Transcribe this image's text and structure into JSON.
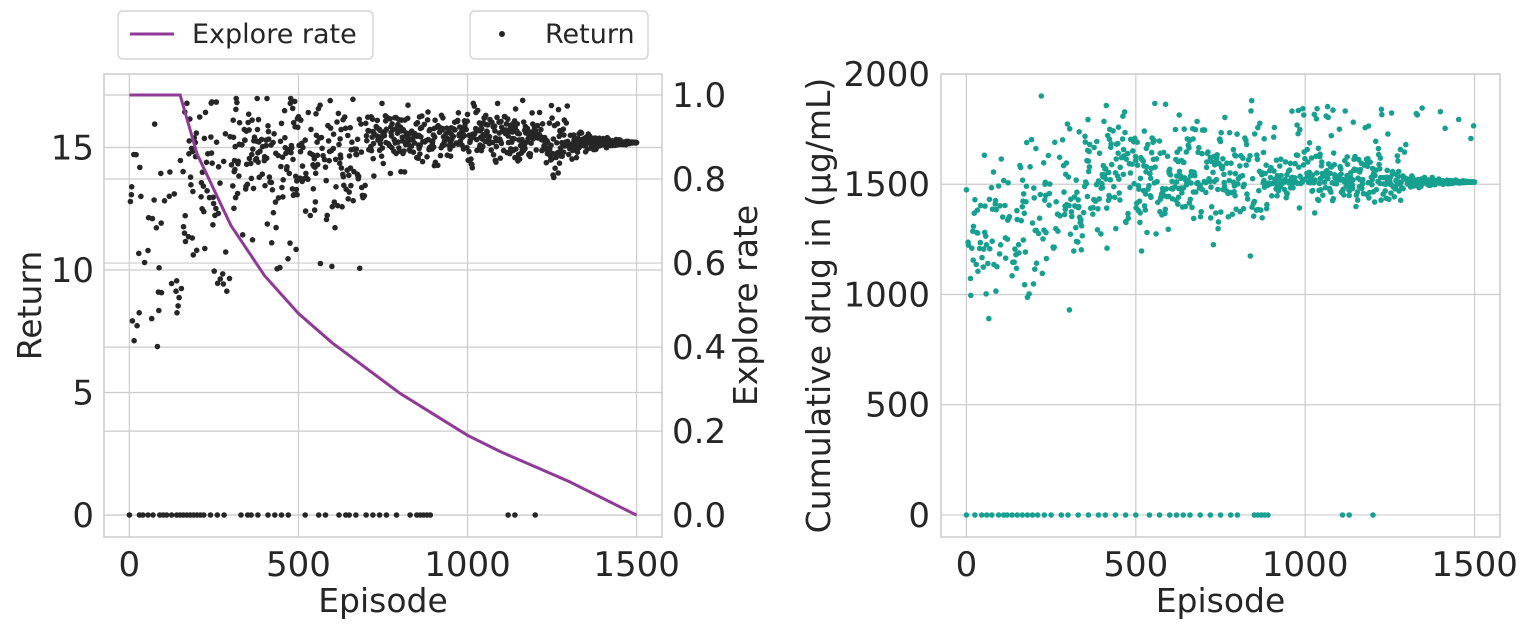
{
  "chart_data": [
    {
      "type": "scatter",
      "xlabel": "Episode",
      "ylabel": "Return",
      "y2label": "Explore rate",
      "xlim": [
        -75,
        1575
      ],
      "ylim": [
        -0.9,
        18
      ],
      "y2lim": [
        -0.052,
        1.05
      ],
      "xticks": [
        0,
        500,
        1000,
        1500
      ],
      "yticks": [
        0,
        5,
        10,
        15
      ],
      "y2ticks": [
        0.0,
        0.2,
        0.4,
        0.6,
        0.8,
        1.0
      ],
      "grid": true,
      "legend": [
        {
          "label": "Explore rate",
          "marker": "line",
          "placement": "above-left"
        },
        {
          "label": "Return",
          "marker": "dot",
          "placement": "above-right"
        }
      ],
      "series": [
        {
          "name": "Explore rate",
          "kind": "line",
          "axis": "right",
          "color": "#8e3a96",
          "x": [
            0,
            150,
            200,
            300,
            400,
            500,
            600,
            700,
            800,
            900,
            1000,
            1100,
            1200,
            1300,
            1400,
            1500
          ],
          "y": [
            1.0,
            1.0,
            0.86,
            0.69,
            0.57,
            0.48,
            0.41,
            0.35,
            0.29,
            0.24,
            0.19,
            0.15,
            0.115,
            0.08,
            0.04,
            0.0
          ]
        },
        {
          "name": "Return",
          "kind": "scatter",
          "axis": "left",
          "color": "#262626",
          "description": "Generated point cloud: episodes 0-1500, returns widely scattered 4-16 early, converging to ~15.2 late, plus zero-return episodes scattered below 1250",
          "convergence_value": 15.2,
          "zero_episodes": [
            0,
            30,
            40,
            55,
            70,
            90,
            100,
            110,
            125,
            140,
            150,
            160,
            170,
            180,
            190,
            200,
            210,
            220,
            240,
            260,
            280,
            330,
            350,
            360,
            380,
            410,
            430,
            450,
            470,
            520,
            560,
            580,
            620,
            640,
            650,
            670,
            700,
            720,
            740,
            760,
            790,
            830,
            850,
            860,
            870,
            880,
            890,
            1120,
            1140,
            1200
          ]
        }
      ]
    },
    {
      "type": "scatter",
      "xlabel": "Episode",
      "ylabel": "Cumulative drug in (μg/mL)",
      "xlim": [
        -75,
        1575
      ],
      "ylim": [
        -100,
        2000
      ],
      "xticks": [
        0,
        500,
        1000,
        1500
      ],
      "yticks": [
        0,
        500,
        1000,
        1500,
        2000
      ],
      "grid": true,
      "series": [
        {
          "kind": "scatter",
          "color": "#17a090",
          "description": "Generated point cloud: episodes 0-1500, values 800-1900, converging to ~1510 late, plus zero-value episodes below 1250",
          "convergence_value": 1510,
          "zero_episodes": [
            0,
            25,
            45,
            60,
            75,
            95,
            110,
            120,
            135,
            150,
            165,
            180,
            195,
            210,
            230,
            250,
            280,
            300,
            330,
            360,
            390,
            410,
            440,
            470,
            500,
            540,
            570,
            600,
            620,
            640,
            660,
            690,
            720,
            750,
            780,
            800,
            850,
            860,
            870,
            880,
            890,
            1110,
            1130,
            1200
          ]
        }
      ]
    }
  ]
}
